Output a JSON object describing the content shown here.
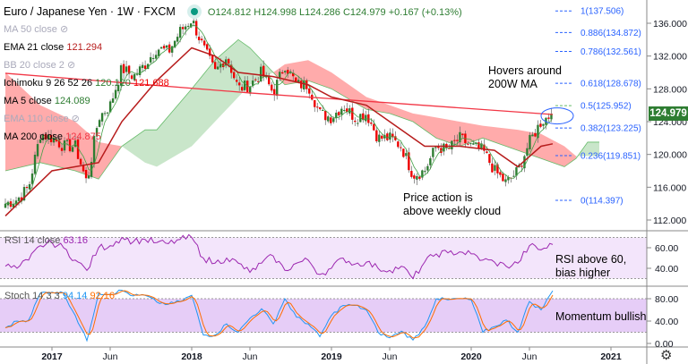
{
  "header": {
    "title": "Euro / Japanese Yen · 1W · FXCM",
    "ohlc": "O124.812  H124.998  L124.286  C124.979  +0.167 (+0.13%)"
  },
  "indicators": [
    {
      "name": "MA 50 close",
      "value": "",
      "hidden": true
    },
    {
      "name": "EMA 21 close",
      "value": "121.294",
      "color": "#b71c1c"
    },
    {
      "name": "BB 20 close 2",
      "value": "",
      "hidden": true
    },
    {
      "name": "Ichimoku 9 26 52 26",
      "value": "120.120",
      "value2": "121.688"
    },
    {
      "name": "MA 5 close",
      "value": "124.089",
      "color": "#2e7d32"
    },
    {
      "name": "EMA 110 close",
      "value": "",
      "hidden": true
    },
    {
      "name": "MA 200 close",
      "value": "124.875",
      "color": "#f23645"
    }
  ],
  "annotations": {
    "ma": "Hovers around\n200W MA",
    "cloud": "Price action is\nabove weekly cloud",
    "rsi": "RSI above 60,\nbias higher",
    "stoch": "Momentum bullish"
  },
  "last_price": "124.979",
  "colors": {
    "up": "#2e7d32",
    "down": "#e00",
    "rsi": "#9c27b0",
    "stochK": "#2196f3",
    "stochD": "#ff6d00",
    "fib": "#2962ff"
  },
  "chart_data": [
    {
      "type": "candlestick",
      "title": "Euro / Japanese Yen · 1W · FXCM",
      "ylim": [
        111,
        138.5
      ],
      "yticks": [
        "112.000",
        "116.000",
        "120.000",
        "124.000",
        "128.000",
        "132.000",
        "136.000"
      ],
      "xticks": [
        "2017",
        "Jun",
        "2018",
        "Jun",
        "2019",
        "Jun",
        "2020",
        "Jun",
        "2021"
      ],
      "close_monthly": {
        "x": [
          "2016-09",
          "2016-10",
          "2016-11",
          "2016-12",
          "2017-01",
          "2017-02",
          "2017-03",
          "2017-04",
          "2017-05",
          "2017-06",
          "2017-07",
          "2017-08",
          "2017-09",
          "2017-10",
          "2017-11",
          "2017-12",
          "2018-01",
          "2018-02",
          "2018-03",
          "2018-04",
          "2018-05",
          "2018-06",
          "2018-07",
          "2018-08",
          "2018-09",
          "2018-10",
          "2018-11",
          "2018-12",
          "2019-01",
          "2019-02",
          "2019-03",
          "2019-04",
          "2019-05",
          "2019-06",
          "2019-07",
          "2019-08",
          "2019-09",
          "2019-10",
          "2019-11",
          "2019-12",
          "2020-01",
          "2020-02",
          "2020-03",
          "2020-04",
          "2020-05",
          "2020-06",
          "2020-07",
          "2020-08"
        ],
        "y": [
          114,
          114.5,
          116,
          122.5,
          122,
          121,
          121,
          116.5,
          124.5,
          126,
          130.5,
          129.5,
          131,
          133,
          132.5,
          135,
          136.5,
          133,
          130,
          132,
          128,
          128.5,
          130,
          127.5,
          131,
          128.5,
          128.5,
          125,
          124.5,
          126,
          124.5,
          125,
          122,
          122,
          121,
          117.5,
          118,
          121,
          120.5,
          122,
          121,
          120.5,
          118,
          116.5,
          118,
          121.5,
          124,
          124.979
        ]
      },
      "ema21": {
        "x": [
          "2016-09",
          "2017-01",
          "2017-05",
          "2017-07",
          "2017-10",
          "2018-01",
          "2018-03",
          "2018-05",
          "2018-08",
          "2018-11",
          "2019-01",
          "2019-04",
          "2019-06",
          "2019-09",
          "2019-12",
          "2020-03",
          "2020-05",
          "2020-07",
          "2020-08"
        ],
        "y": [
          112.5,
          118,
          119,
          124,
          129,
          133,
          132,
          130,
          129.5,
          128.5,
          127,
          126,
          124,
          121,
          121,
          120.5,
          118.5,
          121,
          121.294
        ]
      },
      "ma200": {
        "x": [
          "2016-09",
          "2018-06",
          "2020-08"
        ],
        "y": [
          129.9,
          127.5,
          124.875
        ]
      },
      "ichimoku_cloud": {
        "x": [
          "2016-09",
          "2016-12",
          "2017-03",
          "2017-05",
          "2017-07",
          "2017-09",
          "2017-10",
          "2018-01",
          "2018-03",
          "2018-05",
          "2018-06",
          "2018-08",
          "2018-09",
          "2018-11",
          "2019-01",
          "2019-04",
          "2019-06",
          "2019-08",
          "2019-10",
          "2019-12",
          "2020-02",
          "2020-05",
          "2020-07",
          "2020-09",
          "2020-10",
          "2020-11",
          "2020-12"
        ],
        "span_a": [
          118,
          119,
          118,
          117,
          121,
          123,
          123,
          128,
          131.5,
          134,
          133,
          130,
          128.5,
          129,
          128,
          125.5,
          125,
          124,
          122,
          121,
          122,
          120.5,
          119.5,
          118.5,
          119.5,
          121.5,
          121.5
        ],
        "span_b": [
          130,
          126,
          124,
          121.5,
          121,
          119,
          118.5,
          121,
          124,
          127,
          128.5,
          130,
          131,
          131.5,
          130,
          127,
          126,
          125,
          124.5,
          124,
          123.5,
          123,
          122.5,
          121,
          119.8,
          119.8,
          119.8
        ]
      },
      "fibonacci": [
        {
          "level": "1",
          "price": "137.506"
        },
        {
          "level": "0.886",
          "price": "134.872"
        },
        {
          "level": "0.786",
          "price": "132.561"
        },
        {
          "level": "0.618",
          "price": "128.678"
        },
        {
          "level": "0.5",
          "price": "125.952"
        },
        {
          "level": "0.382",
          "price": "123.225"
        },
        {
          "level": "0.236",
          "price": "119.851"
        },
        {
          "level": "0",
          "price": "114.397"
        }
      ]
    },
    {
      "type": "line",
      "title": "RSI 14 close",
      "value": "63.16",
      "ylim": [
        20,
        80
      ],
      "yticks": [
        "40.00",
        "60.00"
      ],
      "bands": [
        30,
        70
      ],
      "y": [
        42,
        40,
        48,
        62,
        65,
        60,
        48,
        38,
        60,
        62,
        70,
        66,
        68,
        65,
        64,
        68,
        70,
        50,
        45,
        50,
        45,
        36,
        45,
        52,
        38,
        45,
        48,
        34,
        40,
        50,
        44,
        46,
        40,
        38,
        42,
        30,
        46,
        54,
        55,
        56,
        54,
        48,
        46,
        42,
        45,
        62,
        58,
        63.16
      ]
    },
    {
      "type": "line",
      "title": "Stoch 14 3 3",
      "k_value": "94.14",
      "d_value": "92.16",
      "ylim": [
        0,
        100
      ],
      "yticks": [
        "0.00",
        "40.00",
        "80.00"
      ],
      "bands": [
        20,
        80
      ],
      "k": [
        28,
        40,
        42,
        90,
        92,
        90,
        50,
        5,
        90,
        88,
        95,
        85,
        86,
        74,
        70,
        75,
        86,
        15,
        15,
        35,
        20,
        45,
        62,
        35,
        80,
        47,
        35,
        12,
        50,
        68,
        68,
        60,
        20,
        10,
        22,
        6,
        30,
        80,
        78,
        80,
        78,
        20,
        30,
        42,
        20,
        75,
        60,
        94.14
      ]
    }
  ]
}
